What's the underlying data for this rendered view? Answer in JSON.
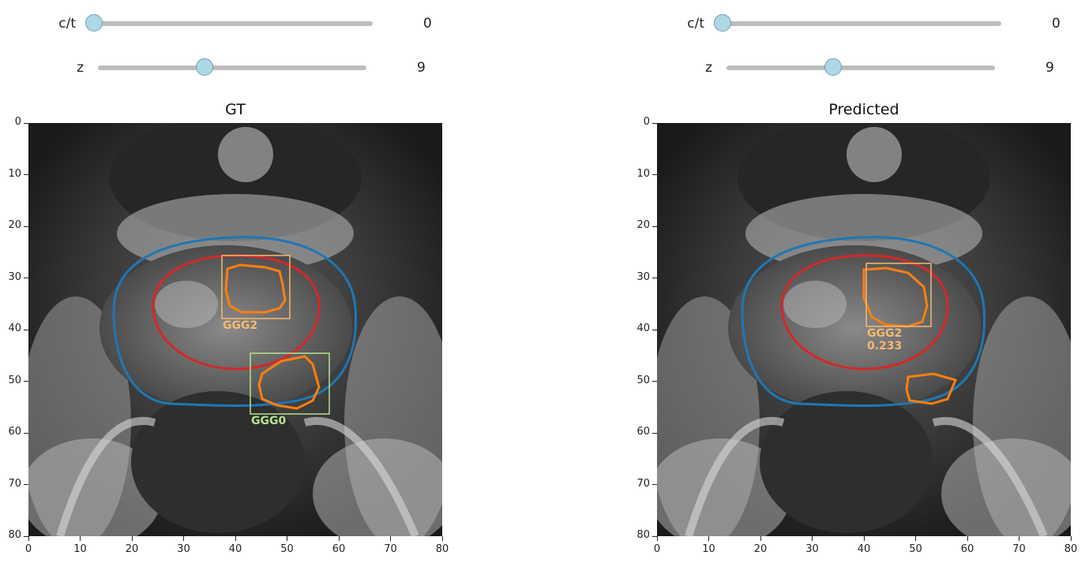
{
  "left": {
    "sliders": [
      {
        "label": "c/t",
        "value": "0",
        "fraction": 0.0
      },
      {
        "label": "z",
        "value": "9",
        "fraction": 0.4
      }
    ],
    "title": "GT",
    "boxes": [
      {
        "label": "GGG2",
        "color": "#f5b971"
      },
      {
        "label": "GGG0",
        "color": "#b5e38c"
      }
    ]
  },
  "right": {
    "sliders": [
      {
        "label": "c/t",
        "value": "0",
        "fraction": 0.0
      },
      {
        "label": "z",
        "value": "9",
        "fraction": 0.4
      }
    ],
    "title": "Predicted",
    "boxes": [
      {
        "label": "GGG2",
        "score": "0.233",
        "color": "#f5b971"
      }
    ]
  },
  "axes": {
    "y_ticks": [
      "0",
      "10",
      "20",
      "30",
      "40",
      "50",
      "60",
      "70",
      "80"
    ],
    "x_ticks": [
      "0",
      "10",
      "20",
      "30",
      "40",
      "50",
      "60",
      "70",
      "80"
    ]
  },
  "colors": {
    "gland_contour": "#1f77b4",
    "zone_contour": "#d62728",
    "lesion_contour": "#ff7f0e",
    "slider_handle": "#add8e6",
    "slider_track": "#bdbdbd"
  }
}
